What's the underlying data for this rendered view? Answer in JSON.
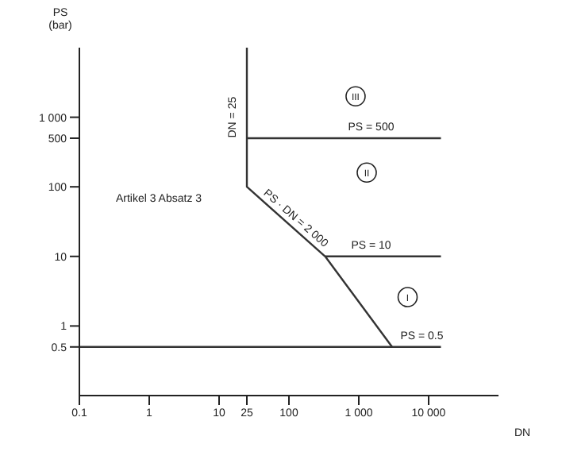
{
  "chart_data": {
    "type": "line",
    "xlabel": "DN",
    "ylabel": "PS (bar)",
    "log": "xy",
    "marker": "none",
    "line_style": "solid",
    "xlim": [
      0.1,
      100000
    ],
    "xticks": [
      0.1,
      1,
      10,
      25,
      100,
      {
        "value": 1000,
        "label": "1 000"
      },
      {
        "value": 10000,
        "label": "10 000"
      }
    ],
    "ylim": [
      0.1,
      10000
    ],
    "yticks": [
      0.5,
      1,
      10,
      100,
      500,
      {
        "value": 1000,
        "label": "1 000"
      }
    ],
    "series": [
      {
        "color": "#333333",
        "x": [
          0.1,
          15000
        ],
        "values": [
          0.5,
          0.5
        ]
      },
      {
        "color": "#333333",
        "x": [
          25,
          25,
          330,
          3000
        ],
        "values": [
          10000,
          100,
          10,
          0.5
        ]
      },
      {
        "color": "#333333",
        "x": [
          25,
          15000
        ],
        "values": [
          500,
          500
        ]
      },
      {
        "color": "#333333",
        "x": [
          330,
          15000
        ],
        "values": [
          10,
          10
        ]
      }
    ],
    "annotations": [
      {
        "text": "PS = 500",
        "x": 1500,
        "y": 500
      },
      {
        "text": "PS = 10",
        "x": 1500,
        "y": 10
      },
      {
        "text": "PS = 0.5",
        "x": 8000,
        "y": 0.5
      },
      {
        "text": "DN = 25",
        "x": 25,
        "y": 1000
      },
      {
        "text": "PS · DN = 2 000",
        "x": 90,
        "y": 25
      },
      "Artikel 3 Absatz 3",
      {
        "text": "III",
        "x": 900,
        "y": 2000
      },
      {
        "text": "II",
        "x": 1300,
        "y": 160
      },
      {
        "text": "I",
        "x": 5000,
        "y": 2.6
      }
    ]
  }
}
